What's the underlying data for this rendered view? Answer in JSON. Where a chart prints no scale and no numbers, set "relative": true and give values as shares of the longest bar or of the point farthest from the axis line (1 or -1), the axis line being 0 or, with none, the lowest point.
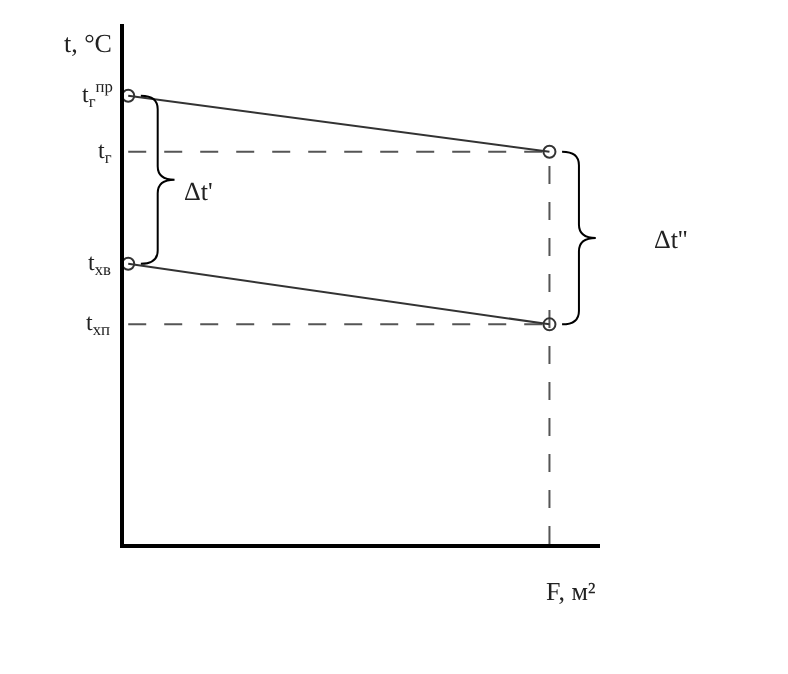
{
  "chart_data": {
    "type": "line",
    "relative": true,
    "ylabel": "t, °C",
    "xlabel": "F, м²",
    "categories": [
      null,
      null
    ],
    "series": [
      {
        "name": "t$_{г}$$^{пр}$",
        "color": "#333333",
        "values": [
          1,
          0.875
        ]
      },
      {
        "name": "t$_{хв}$",
        "color": "#333333",
        "values": [
          0.625,
          0.49
        ]
      }
    ],
    "marker": "circle",
    "line_style": "solid",
    "legend": false,
    "ref_lines": [
      {
        "axis": "y",
        "value": 0.875,
        "label": "t$_{г}$",
        "line_style": "dashed",
        "color": "#555555"
      },
      {
        "axis": "y",
        "value": 0.49,
        "label": "t$_{хп}$",
        "line_style": "dashed",
        "color": "#555555"
      }
    ],
    "annotations": [
      "Δt'",
      "Δt''"
    ]
  }
}
